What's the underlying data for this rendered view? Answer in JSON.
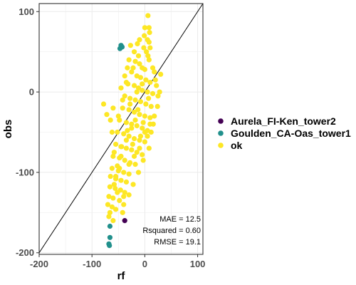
{
  "chart_data": {
    "type": "scatter",
    "xlabel": "rf",
    "ylabel": "obs",
    "xlim": [
      -200,
      110
    ],
    "ylim": [
      -202,
      110
    ],
    "xticks": [
      -200,
      -100,
      0,
      100
    ],
    "xtick_labels": [
      "-200",
      "-100",
      "0",
      "100"
    ],
    "yticks": [
      -200,
      -100,
      0,
      100
    ],
    "ytick_labels": [
      "-200",
      "-100",
      "0",
      "100"
    ],
    "grid": true,
    "reference_line": "y = x",
    "legend_position": "right",
    "series": [
      {
        "name": "Aurela_FI-Ken_tower2",
        "color": "#440154",
        "points": [
          [
            -38,
            -160
          ]
        ]
      },
      {
        "name": "Goulden_CA-Oas_tower1",
        "color": "#21908C",
        "points": [
          [
            -47,
            54
          ],
          [
            -45,
            58
          ],
          [
            -43,
            56
          ],
          [
            -66,
            -167
          ],
          [
            -66,
            -181
          ],
          [
            -68,
            -189
          ],
          [
            -67,
            -191
          ]
        ]
      },
      {
        "name": "ok",
        "color": "#FDE725",
        "points": [
          [
            6,
            95
          ],
          [
            8,
            80
          ],
          [
            9,
            74
          ],
          [
            -1,
            70
          ],
          [
            5,
            65
          ],
          [
            8,
            62
          ],
          [
            -14,
            60
          ],
          [
            10,
            55
          ],
          [
            3,
            50
          ],
          [
            6,
            45
          ],
          [
            -30,
            40
          ],
          [
            -18,
            38
          ],
          [
            -10,
            35
          ],
          [
            -5,
            30
          ],
          [
            0,
            28
          ],
          [
            -25,
            25
          ],
          [
            -15,
            20
          ],
          [
            -8,
            18
          ],
          [
            2,
            15
          ],
          [
            10,
            12
          ],
          [
            -32,
            10
          ],
          [
            -20,
            8
          ],
          [
            -12,
            5
          ],
          [
            -5,
            2
          ],
          [
            5,
            0
          ],
          [
            15,
            -2
          ],
          [
            -38,
            -5
          ],
          [
            -28,
            -8
          ],
          [
            -18,
            -10
          ],
          [
            -8,
            -12
          ],
          [
            2,
            -15
          ],
          [
            12,
            -18
          ],
          [
            -42,
            -20
          ],
          [
            -30,
            -22
          ],
          [
            -20,
            -25
          ],
          [
            -10,
            -28
          ],
          [
            0,
            -30
          ],
          [
            10,
            -32
          ],
          [
            -48,
            -35
          ],
          [
            -35,
            -38
          ],
          [
            -25,
            -40
          ],
          [
            -15,
            -42
          ],
          [
            -5,
            -45
          ],
          [
            5,
            -48
          ],
          [
            -52,
            -50
          ],
          [
            -40,
            -52
          ],
          [
            -30,
            -55
          ],
          [
            -20,
            -58
          ],
          [
            -10,
            -60
          ],
          [
            0,
            -62
          ],
          [
            -55,
            -65
          ],
          [
            -45,
            -68
          ],
          [
            -35,
            -70
          ],
          [
            -25,
            -72
          ],
          [
            -15,
            -75
          ],
          [
            -5,
            -78
          ],
          [
            -60,
            -80
          ],
          [
            -48,
            -82
          ],
          [
            -38,
            -85
          ],
          [
            -28,
            -88
          ],
          [
            -18,
            -90
          ],
          [
            -62,
            -95
          ],
          [
            -50,
            -98
          ],
          [
            -40,
            -100
          ],
          [
            -30,
            -102
          ],
          [
            -65,
            -105
          ],
          [
            -55,
            -108
          ],
          [
            -45,
            -110
          ],
          [
            -35,
            -112
          ],
          [
            -66,
            -118
          ],
          [
            -56,
            -120
          ],
          [
            -46,
            -122
          ],
          [
            -38,
            -125
          ],
          [
            -68,
            -130
          ],
          [
            -60,
            -132
          ],
          [
            -48,
            -135
          ],
          [
            -70,
            -140
          ],
          [
            -62,
            -143
          ],
          [
            -55,
            -146
          ],
          [
            -66,
            -150
          ],
          [
            -68,
            -155
          ],
          [
            -55,
            -105
          ],
          [
            -48,
            -95
          ],
          [
            -58,
            -75
          ],
          [
            -62,
            -50
          ],
          [
            -50,
            -30
          ],
          [
            -42,
            -10
          ],
          [
            -35,
            12
          ],
          [
            -22,
            30
          ],
          [
            -12,
            45
          ],
          [
            -2,
            55
          ],
          [
            8,
            40
          ],
          [
            18,
            25
          ],
          [
            22,
            8
          ],
          [
            25,
            -5
          ],
          [
            18,
            -30
          ],
          [
            12,
            -50
          ],
          [
            8,
            -70
          ],
          [
            -3,
            -85
          ],
          [
            -12,
            -100
          ],
          [
            -22,
            -115
          ],
          [
            -30,
            -128
          ],
          [
            -40,
            -140
          ],
          [
            -8,
            -55
          ],
          [
            -18,
            -35
          ],
          [
            -28,
            -15
          ],
          [
            -5,
            10
          ],
          [
            15,
            30
          ],
          [
            20,
            15
          ],
          [
            -15,
            0
          ],
          [
            -25,
            -45
          ],
          [
            -35,
            -60
          ],
          [
            -45,
            -80
          ],
          [
            -52,
            -92
          ],
          [
            -58,
            -115
          ],
          [
            -44,
            -68
          ],
          [
            -33,
            -48
          ],
          [
            -23,
            -65
          ],
          [
            -13,
            -22
          ],
          [
            -3,
            -38
          ],
          [
            7,
            -8
          ],
          [
            -52,
            -125
          ],
          [
            -42,
            -150
          ],
          [
            -60,
            -20
          ],
          [
            -65,
            -35
          ],
          [
            -38,
            20
          ],
          [
            -45,
            5
          ],
          [
            30,
            22
          ],
          [
            28,
            0
          ],
          [
            24,
            -18
          ],
          [
            16,
            -40
          ],
          [
            5,
            -55
          ],
          [
            -60,
            -160
          ],
          [
            -40,
            -130
          ],
          [
            -20,
            50
          ],
          [
            -10,
            65
          ],
          [
            0,
            80
          ],
          [
            -27,
            58
          ],
          [
            -33,
            30
          ],
          [
            -72,
            -28
          ],
          [
            -78,
            -15
          ],
          [
            -30,
            -90
          ],
          [
            -20,
            -80
          ],
          [
            -10,
            -70
          ],
          [
            0,
            -50
          ],
          [
            10,
            -40
          ]
        ]
      }
    ],
    "annotations": [
      "MAE = 12.5",
      "Rsquared = 0.60",
      "RMSE = 19.1"
    ]
  }
}
